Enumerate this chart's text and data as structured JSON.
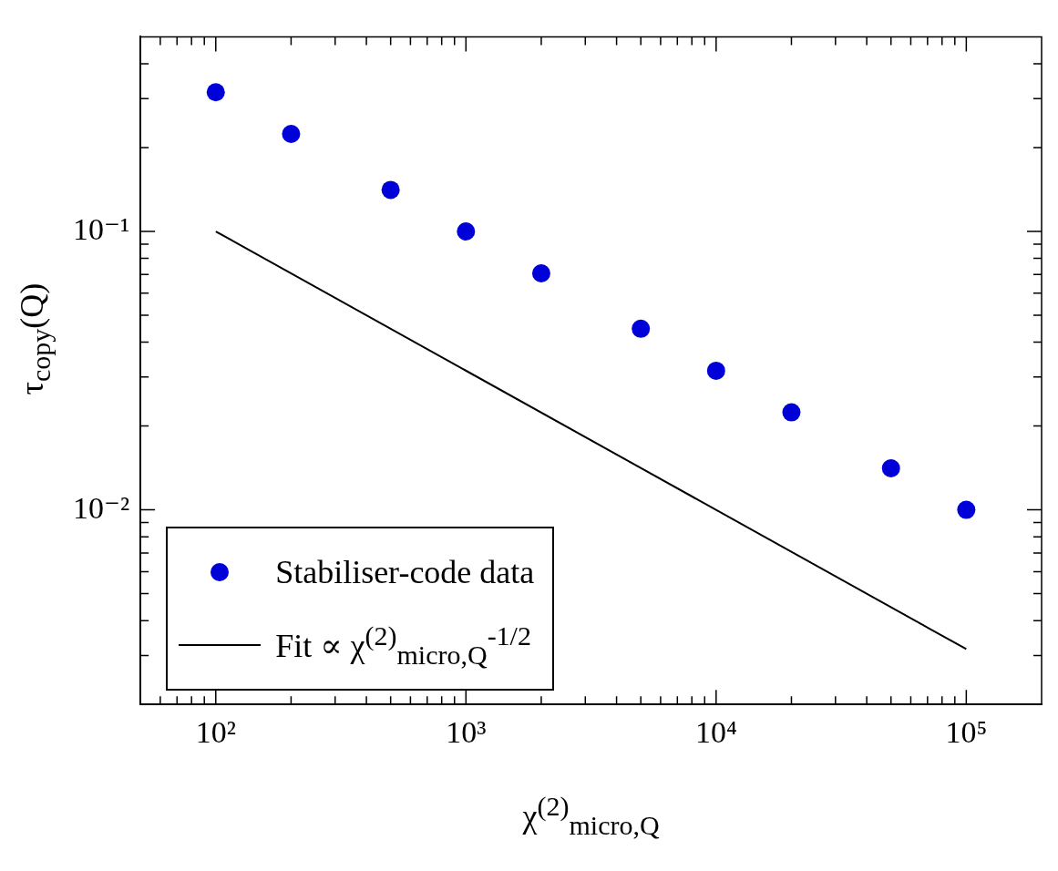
{
  "chart_data": {
    "type": "scatter",
    "xlabel": "χ$^{(2)}$$_{micro,Q}$",
    "ylabel": "τ$_{copy}$(Q)",
    "x": [
      100,
      200,
      500,
      1000,
      2000,
      5000,
      10000,
      20000,
      50000,
      100000
    ],
    "series": [
      {
        "name": "Stabiliser-code data",
        "marker": "circle",
        "color": "#0000d9",
        "values": [
          0.316,
          0.224,
          0.141,
          0.1,
          0.0707,
          0.0447,
          0.0316,
          0.0224,
          0.0141,
          0.01
        ]
      },
      {
        "name": "Fit ∝ χ$^{(2)}$$_{micro,Q}$$^{-1/2}$",
        "type": "line",
        "marker": "none",
        "color": "#000000",
        "x": [
          100,
          100000
        ],
        "values": [
          0.1,
          0.00316
        ]
      }
    ],
    "log": "xy",
    "xlim": [
      50,
      200000
    ],
    "ylim": [
      0.002,
      0.5
    ],
    "xticks": [
      {
        "value": 60,
        "label": null
      },
      {
        "value": 70,
        "label": null
      },
      {
        "value": 80,
        "label": null
      },
      {
        "value": 90,
        "label": null
      },
      {
        "value": 100,
        "label": "10²"
      },
      {
        "value": 200,
        "label": null
      },
      {
        "value": 300,
        "label": null
      },
      {
        "value": 400,
        "label": null
      },
      {
        "value": 500,
        "label": null
      },
      {
        "value": 600,
        "label": null
      },
      {
        "value": 700,
        "label": null
      },
      {
        "value": 800,
        "label": null
      },
      {
        "value": 900,
        "label": null
      },
      {
        "value": 1000,
        "label": "10³"
      },
      {
        "value": 2000,
        "label": null
      },
      {
        "value": 3000,
        "label": null
      },
      {
        "value": 4000,
        "label": null
      },
      {
        "value": 5000,
        "label": null
      },
      {
        "value": 6000,
        "label": null
      },
      {
        "value": 7000,
        "label": null
      },
      {
        "value": 8000,
        "label": null
      },
      {
        "value": 9000,
        "label": null
      },
      {
        "value": 10000,
        "label": "10⁴"
      },
      {
        "value": 20000,
        "label": null
      },
      {
        "value": 30000,
        "label": null
      },
      {
        "value": 40000,
        "label": null
      },
      {
        "value": 50000,
        "label": null
      },
      {
        "value": 60000,
        "label": null
      },
      {
        "value": 70000,
        "label": null
      },
      {
        "value": 80000,
        "label": null
      },
      {
        "value": 90000,
        "label": null
      },
      {
        "value": 100000,
        "label": "10⁵"
      }
    ],
    "yticks": [
      {
        "value": 0.003,
        "label": null
      },
      {
        "value": 0.004,
        "label": null
      },
      {
        "value": 0.005,
        "label": null
      },
      {
        "value": 0.006,
        "label": null
      },
      {
        "value": 0.007,
        "label": null
      },
      {
        "value": 0.008,
        "label": null
      },
      {
        "value": 0.009,
        "label": null
      },
      {
        "value": 0.01,
        "label": "10⁻²"
      },
      {
        "value": 0.02,
        "label": null
      },
      {
        "value": 0.03,
        "label": null
      },
      {
        "value": 0.04,
        "label": null
      },
      {
        "value": 0.05,
        "label": null
      },
      {
        "value": 0.06,
        "label": null
      },
      {
        "value": 0.07,
        "label": null
      },
      {
        "value": 0.08,
        "label": null
      },
      {
        "value": 0.09,
        "label": null
      },
      {
        "value": 0.1,
        "label": "10⁻¹"
      },
      {
        "value": 0.2,
        "label": null
      },
      {
        "value": 0.3,
        "label": null
      },
      {
        "value": 0.4,
        "label": null
      }
    ],
    "legend": "bottom left",
    "grid": false
  }
}
